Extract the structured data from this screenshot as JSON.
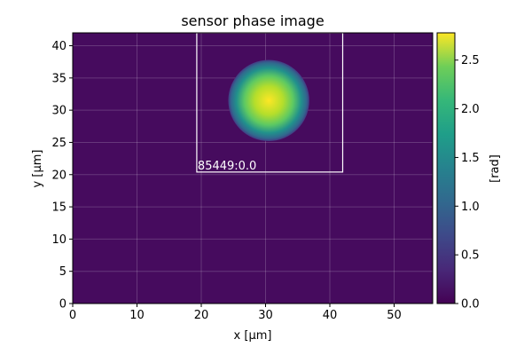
{
  "chart_data": {
    "type": "heatmap",
    "title": "sensor phase image",
    "xlabel": "x [µm]",
    "ylabel": "y [µm]",
    "xlim": [
      0,
      56
    ],
    "ylim": [
      0,
      42
    ],
    "xticks": [
      0,
      10,
      20,
      30,
      40,
      50
    ],
    "yticks": [
      0,
      5,
      10,
      15,
      20,
      25,
      30,
      35,
      40
    ],
    "grid": true,
    "colormap": "viridis",
    "background_value": 0.02,
    "spot": {
      "center_x": 30.5,
      "center_y": 31.5,
      "radius": 6.3,
      "peak_value": 2.75,
      "edge_value": 0.65
    },
    "roi": {
      "x_min": 19.3,
      "x_max": 42.0,
      "y_min": 20.4,
      "y_max": 42.0,
      "label": "85449:0.0",
      "color": "#ffffff"
    },
    "colorbar": {
      "label": "[rad]",
      "min": 0,
      "max": 2.78,
      "ticks": [
        "0.0",
        "0.5",
        "1.0",
        "1.5",
        "2.0",
        "2.5"
      ]
    }
  }
}
